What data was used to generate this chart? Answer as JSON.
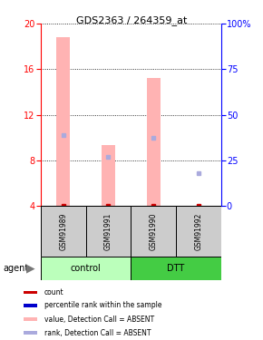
{
  "title": "GDS2363 / 264359_at",
  "samples": [
    "GSM91989",
    "GSM91991",
    "GSM91990",
    "GSM91992"
  ],
  "ylim_left": [
    4,
    20
  ],
  "ylim_right": [
    0,
    100
  ],
  "yticks_left": [
    4,
    8,
    12,
    16,
    20
  ],
  "yticks_right": [
    0,
    25,
    50,
    75,
    100
  ],
  "bar_values": [
    18.8,
    9.3,
    15.2,
    4.0
  ],
  "rank_values": [
    10.2,
    8.3,
    10.0,
    6.9
  ],
  "bar_color": "#ffb3b3",
  "rank_color": "#aaaadd",
  "count_color": "#cc0000",
  "percentile_color": "#0000cc",
  "bar_width": 0.3,
  "group_spans": [
    {
      "label": "control",
      "start": 0,
      "end": 1,
      "color": "#bbffbb"
    },
    {
      "label": "DTT",
      "start": 2,
      "end": 3,
      "color": "#44cc44"
    }
  ],
  "legend_items": [
    {
      "label": "count",
      "color": "#cc0000"
    },
    {
      "label": "percentile rank within the sample",
      "color": "#0000cc"
    },
    {
      "label": "value, Detection Call = ABSENT",
      "color": "#ffb3b3"
    },
    {
      "label": "rank, Detection Call = ABSENT",
      "color": "#aaaadd"
    }
  ]
}
